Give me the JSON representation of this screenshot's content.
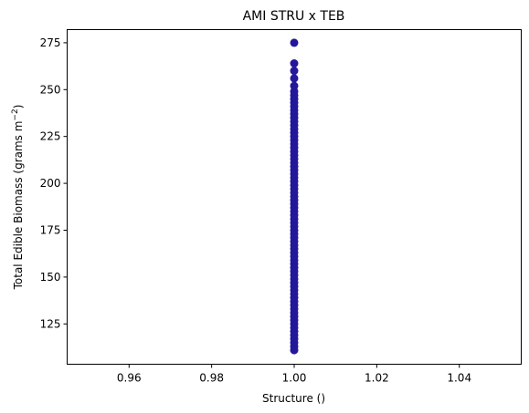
{
  "chart_data": {
    "type": "scatter",
    "title": "AMI STRU x TEB",
    "xlabel": "Structure ()",
    "ylabel_main": "Total Edible Biomass (grams m",
    "ylabel_sup": "−2",
    "ylabel_tail": ")",
    "xlim": [
      0.945,
      1.055
    ],
    "ylim": [
      103.5,
      282.0
    ],
    "x_ticks": [
      0.96,
      0.98,
      1.0,
      1.02,
      1.04
    ],
    "x_tick_labels": [
      "0.96",
      "0.98",
      "1.00",
      "1.02",
      "1.04"
    ],
    "y_ticks": [
      125,
      150,
      175,
      200,
      225,
      250,
      275
    ],
    "y_tick_labels": [
      "125",
      "150",
      "175",
      "200",
      "225",
      "250",
      "275"
    ],
    "marker_color": "#23179a",
    "grid": false,
    "legend": "none",
    "series": [
      {
        "x": [
          1.0,
          1.0,
          1.0,
          1.0,
          1.0,
          1.0,
          1.0,
          1.0,
          1.0,
          1.0,
          1.0,
          1.0,
          1.0,
          1.0,
          1.0,
          1.0,
          1.0,
          1.0,
          1.0,
          1.0,
          1.0,
          1.0,
          1.0,
          1.0,
          1.0,
          1.0,
          1.0,
          1.0,
          1.0,
          1.0,
          1.0,
          1.0,
          1.0,
          1.0,
          1.0,
          1.0,
          1.0,
          1.0,
          1.0,
          1.0,
          1.0,
          1.0,
          1.0,
          1.0,
          1.0,
          1.0,
          1.0,
          1.0,
          1.0,
          1.0,
          1.0,
          1.0,
          1.0,
          1.0,
          1.0,
          1.0,
          1.0,
          1.0,
          1.0,
          1.0,
          1.0,
          1.0,
          1.0,
          1.0,
          1.0,
          1.0,
          1.0,
          1.0,
          1.0,
          1.0,
          1.0,
          1.0,
          1.0,
          1.0,
          1.0
        ],
        "y": [
          111,
          113,
          115,
          117,
          119,
          121,
          123,
          125,
          127,
          129,
          131,
          133,
          135,
          137,
          139,
          141,
          143,
          145,
          147,
          149,
          151,
          153,
          155,
          157,
          159,
          161,
          163,
          165,
          167,
          169,
          171,
          173,
          175,
          177,
          179,
          181,
          183,
          185,
          187,
          189,
          191,
          193,
          195,
          197,
          199,
          201,
          203,
          205,
          207,
          209,
          211,
          213,
          215,
          217,
          219,
          221,
          223,
          225,
          227,
          229,
          231,
          233,
          235,
          237,
          239,
          241,
          243,
          245,
          247,
          249,
          252,
          256,
          260,
          264,
          275
        ]
      }
    ]
  }
}
